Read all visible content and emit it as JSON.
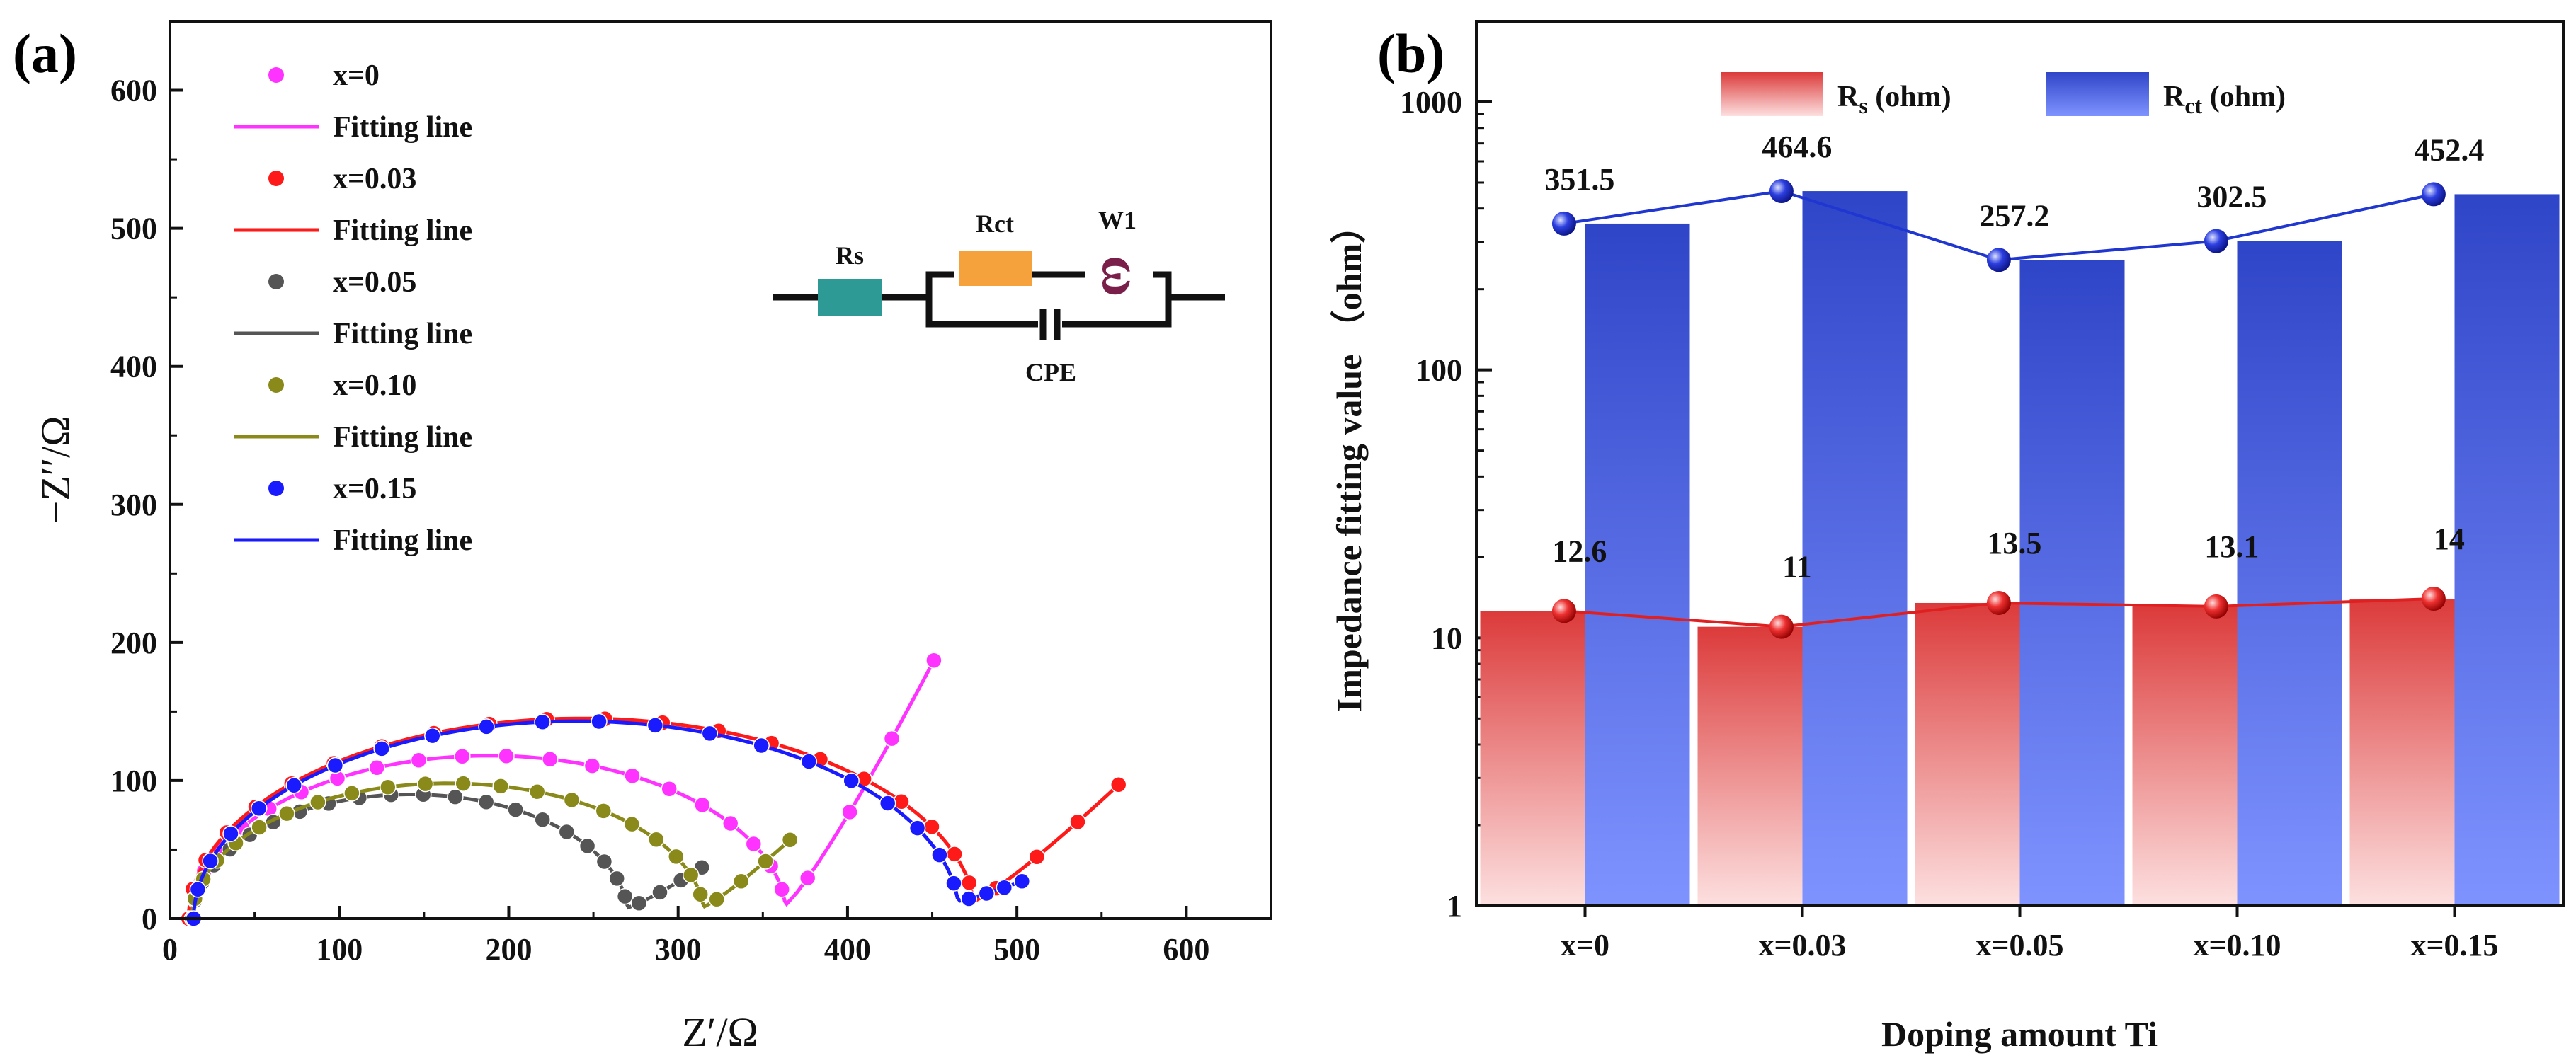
{
  "panel_a": {
    "label": "(a)",
    "circuit": {
      "rs_label": "Rs",
      "rct_label": "Rct",
      "w_label": "W1",
      "w_symbol": "ω",
      "cpe_label": "CPE",
      "rs_color": "#2e9a96",
      "rct_color": "#f5a23d",
      "w_color": "#7a1f4a"
    }
  },
  "panel_b": {
    "label": "(b)"
  },
  "chart_data": [
    {
      "type": "scatter",
      "title": "",
      "xlabel": "Z′/Ω",
      "ylabel": "−Z′′/Ω",
      "xlim": [
        0,
        650
      ],
      "ylim": [
        0,
        650
      ],
      "xticks": [
        0,
        100,
        200,
        300,
        400,
        500,
        600
      ],
      "yticks": [
        0,
        100,
        200,
        300,
        400,
        500,
        600
      ],
      "legend_position": "top-left",
      "series": [
        {
          "name": "x=0",
          "fit_name": "Fitting line",
          "color": "#ff33ff",
          "rs": 12.6,
          "rct": 351.5,
          "arc_peak": 118,
          "tail_end": [
            451,
            187
          ]
        },
        {
          "name": "x=0.03",
          "fit_name": "Fitting line",
          "color": "#ff1a1a",
          "rs": 11,
          "rct": 464.6,
          "arc_peak": 145,
          "tail_end": [
            560,
            97
          ]
        },
        {
          "name": "x=0.05",
          "fit_name": "Fitting line",
          "color": "#555555",
          "rs": 13.5,
          "rct": 257.2,
          "arc_peak": 90,
          "tail_end": [
            314,
            37
          ]
        },
        {
          "name": "x=0.10",
          "fit_name": "Fitting line",
          "color": "#8a8a1a",
          "rs": 13.1,
          "rct": 302.5,
          "arc_peak": 98,
          "tail_end": [
            366,
            57
          ]
        },
        {
          "name": "x=0.15",
          "fit_name": "Fitting line",
          "color": "#1a1aff",
          "rs": 14,
          "rct": 452.4,
          "arc_peak": 143,
          "tail_end": [
            503,
            27
          ]
        }
      ]
    },
    {
      "type": "bar",
      "title": "",
      "xlabel": "Doping amount Ti",
      "ylabel": "Impedance fitting value （ohm）",
      "yscale": "log",
      "ylim": [
        1,
        2000
      ],
      "yticks": [
        1,
        10,
        100,
        1000
      ],
      "categories": [
        "x=0",
        "x=0.03",
        "x=0.05",
        "x=0.10",
        "x=0.15"
      ],
      "legend_position": "top-center",
      "series": [
        {
          "name": "Rs (ohm)",
          "legend_main": "R",
          "legend_sub": "s",
          "legend_rest": " (ohm)",
          "color": "#e04848",
          "values": [
            12.6,
            11,
            13.5,
            13.1,
            14
          ],
          "labels": [
            "12.6",
            "11",
            "13.5",
            "13.1",
            "14"
          ]
        },
        {
          "name": "Rct (ohm)",
          "legend_main": "R",
          "legend_sub": "ct",
          "legend_rest": " (ohm)",
          "color": "#3a4fd0",
          "values": [
            351.5,
            464.6,
            257.2,
            302.5,
            452.4
          ],
          "labels": [
            "351.5",
            "464.6",
            "257.2",
            "302.5",
            "452.4"
          ]
        }
      ]
    }
  ]
}
